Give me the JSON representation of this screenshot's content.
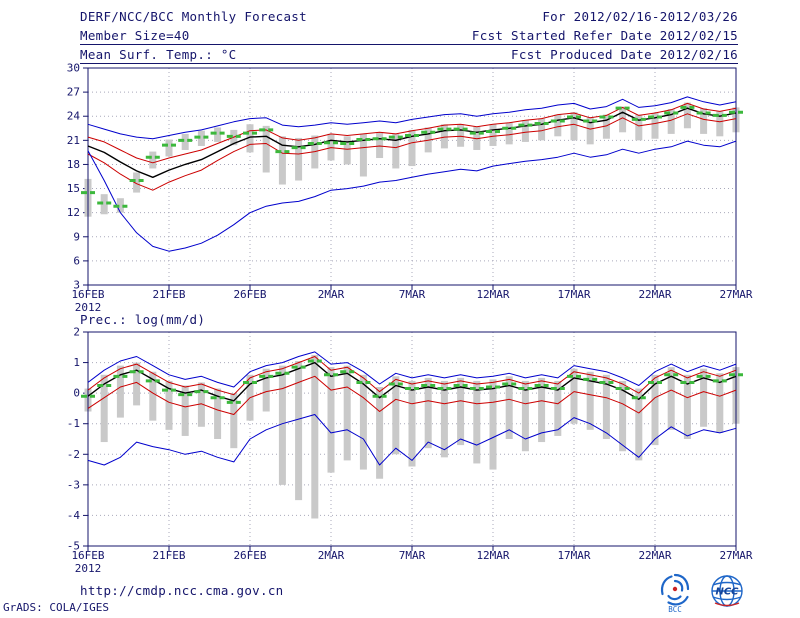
{
  "header": {
    "title": "DERF/NCC/BCC Monthly Forecast",
    "member_size": "Member Size=40",
    "panel1_label": "Mean Surf. Temp.: °C",
    "for_range": "For 2012/02/16-2012/03/26",
    "refer_date": "Fcst Started Refer Date 2012/02/15",
    "produced_date": "Fcst Produced Date 2012/02/16"
  },
  "panel2_label": "Prec.: log(mm/d)",
  "footer": {
    "url": "http://cmdp.ncc.cma.gov.cn",
    "credit": "GrADS: COLA/IGES",
    "logo_left_label": "BCC",
    "logo_right_label": "NCC"
  },
  "colors": {
    "text": "#15156b",
    "frame": "#15156b",
    "grid": "#a9a9bb",
    "bar": "#c9c9c9",
    "minmax": "#0000cc",
    "std": "#cc0000",
    "mean": "#000000",
    "obs": "#3cb83c"
  },
  "chart_data": [
    {
      "type": "line",
      "name": "mean-surface-temperature",
      "title": "Mean Surf. Temp.: °C",
      "ylabel": "°C",
      "ylim": [
        3,
        30
      ],
      "yticks": [
        30,
        27,
        24,
        21,
        18,
        15,
        12,
        9,
        6,
        3
      ],
      "xtick_days": [
        0,
        5,
        10,
        15,
        20,
        25,
        30,
        35,
        40
      ],
      "xtick_labels": [
        "16FEB",
        "21FEB",
        "26FEB",
        "2MAR",
        "7MAR",
        "12MAR",
        "17MAR",
        "22MAR",
        "27MAR"
      ],
      "x_year_label": "2012",
      "grid": "dotted",
      "legend_position": "none",
      "series": [
        {
          "name": "ensemble-max",
          "color": "#0000cc",
          "width": 1,
          "values": [
            23.0,
            22.4,
            21.8,
            21.4,
            21.2,
            21.6,
            22.0,
            22.3,
            22.8,
            23.3,
            23.7,
            23.8,
            22.9,
            22.7,
            22.9,
            23.2,
            23.0,
            23.2,
            23.4,
            23.2,
            23.6,
            23.9,
            24.2,
            24.3,
            24.0,
            24.3,
            24.5,
            24.8,
            25.0,
            25.4,
            25.6,
            24.9,
            25.2,
            26.1,
            25.1,
            25.3,
            25.7,
            26.4,
            25.8,
            25.4,
            25.8
          ]
        },
        {
          "name": "mean-plus-spread",
          "color": "#cc0000",
          "width": 1,
          "values": [
            21.4,
            20.8,
            19.8,
            18.8,
            18.2,
            18.8,
            19.3,
            19.8,
            20.6,
            21.4,
            22.2,
            22.3,
            21.3,
            21.0,
            21.3,
            21.8,
            21.6,
            21.8,
            22.0,
            21.8,
            22.2,
            22.5,
            22.9,
            23.0,
            22.7,
            23.0,
            23.2,
            23.5,
            23.7,
            24.2,
            24.4,
            23.8,
            24.1,
            25.1,
            24.1,
            24.4,
            24.8,
            25.6,
            24.9,
            24.6,
            25.0
          ]
        },
        {
          "name": "ensemble-mean",
          "color": "#000000",
          "width": 1.4,
          "values": [
            20.3,
            19.5,
            18.3,
            17.2,
            16.4,
            17.3,
            18.0,
            18.6,
            19.6,
            20.6,
            21.4,
            21.5,
            20.4,
            20.2,
            20.5,
            21.0,
            20.8,
            21.0,
            21.2,
            21.0,
            21.5,
            21.8,
            22.2,
            22.3,
            22.0,
            22.3,
            22.5,
            22.8,
            23.0,
            23.5,
            23.8,
            23.2,
            23.5,
            24.5,
            23.5,
            23.8,
            24.2,
            25.0,
            24.3,
            24.0,
            24.4
          ]
        },
        {
          "name": "mean-minus-spread",
          "color": "#cc0000",
          "width": 1,
          "values": [
            19.3,
            18.2,
            16.8,
            15.6,
            14.8,
            15.8,
            16.6,
            17.3,
            18.5,
            19.6,
            20.5,
            20.6,
            19.4,
            19.3,
            19.6,
            20.1,
            19.9,
            20.1,
            20.3,
            20.1,
            20.7,
            21.0,
            21.4,
            21.5,
            21.2,
            21.5,
            21.7,
            22.0,
            22.2,
            22.7,
            23.0,
            22.4,
            22.8,
            23.8,
            22.8,
            23.1,
            23.5,
            24.3,
            23.6,
            23.3,
            23.7
          ]
        },
        {
          "name": "ensemble-min",
          "color": "#0000cc",
          "width": 1,
          "values": [
            19.7,
            16.0,
            12.0,
            9.5,
            7.8,
            7.2,
            7.6,
            8.2,
            9.2,
            10.5,
            12.0,
            12.8,
            13.2,
            13.4,
            14.0,
            14.8,
            15.0,
            15.3,
            15.8,
            16.0,
            16.4,
            16.8,
            17.1,
            17.4,
            17.2,
            17.8,
            18.1,
            18.4,
            18.6,
            18.9,
            19.4,
            18.9,
            19.2,
            19.9,
            19.4,
            19.9,
            20.2,
            20.9,
            20.4,
            20.2,
            20.9
          ]
        }
      ],
      "bars": {
        "name": "ensemble-spread-bar",
        "color": "#c9c9c9",
        "ranges": [
          [
            11.5,
            16.2
          ],
          [
            11.8,
            14.3
          ],
          [
            12.0,
            13.8
          ],
          [
            14.5,
            17.0
          ],
          [
            17.5,
            19.6
          ],
          [
            19.0,
            21.1
          ],
          [
            19.8,
            21.8
          ],
          [
            20.3,
            22.2
          ],
          [
            20.8,
            22.6
          ],
          [
            20.4,
            22.3
          ],
          [
            19.5,
            23.0
          ],
          [
            17.0,
            22.8
          ],
          [
            15.5,
            21.5
          ],
          [
            16.0,
            21.3
          ],
          [
            17.5,
            21.6
          ],
          [
            18.5,
            21.8
          ],
          [
            18.0,
            21.5
          ],
          [
            16.5,
            21.8
          ],
          [
            18.8,
            22.0
          ],
          [
            17.5,
            21.8
          ],
          [
            17.8,
            22.3
          ],
          [
            19.5,
            22.6
          ],
          [
            20.0,
            23.0
          ],
          [
            20.2,
            23.0
          ],
          [
            19.8,
            22.7
          ],
          [
            20.3,
            23.0
          ],
          [
            20.5,
            23.2
          ],
          [
            20.8,
            23.5
          ],
          [
            21.0,
            23.7
          ],
          [
            21.5,
            24.2
          ],
          [
            21.0,
            24.5
          ],
          [
            20.5,
            23.9
          ],
          [
            21.2,
            24.2
          ],
          [
            22.0,
            25.2
          ],
          [
            21.0,
            24.2
          ],
          [
            21.2,
            24.4
          ],
          [
            21.8,
            24.9
          ],
          [
            22.5,
            25.7
          ],
          [
            21.8,
            25.0
          ],
          [
            21.5,
            24.6
          ],
          [
            22.0,
            25.1
          ]
        ]
      },
      "markers": {
        "name": "observation-marker",
        "color": "#3cb83c",
        "values": [
          14.5,
          13.2,
          12.8,
          16.0,
          18.9,
          20.4,
          21.0,
          21.4,
          21.9,
          21.5,
          21.9,
          22.3,
          19.6,
          20.1,
          20.6,
          20.7,
          20.6,
          21.1,
          21.2,
          21.4,
          21.6,
          22.0,
          22.4,
          22.4,
          21.9,
          22.1,
          22.5,
          22.9,
          23.1,
          23.4,
          23.9,
          23.4,
          23.9,
          25.0,
          23.6,
          23.9,
          24.4,
          25.1,
          24.4,
          24.1,
          24.5
        ]
      }
    },
    {
      "type": "line",
      "name": "precipitation-log",
      "title": "Prec.: log(mm/d)",
      "ylabel": "log(mm/d)",
      "ylim": [
        -5,
        2
      ],
      "yticks": [
        2,
        1,
        0,
        -1,
        -2,
        -3,
        -4,
        -5
      ],
      "xtick_days": [
        0,
        5,
        10,
        15,
        20,
        25,
        30,
        35,
        40
      ],
      "xtick_labels": [
        "16FEB",
        "21FEB",
        "26FEB",
        "2MAR",
        "7MAR",
        "12MAR",
        "17MAR",
        "22MAR",
        "27MAR"
      ],
      "x_year_label": "2012",
      "grid": "dotted",
      "legend_position": "none",
      "series": [
        {
          "name": "ensemble-max",
          "color": "#0000cc",
          "width": 1,
          "values": [
            0.35,
            0.75,
            1.05,
            1.2,
            0.9,
            0.6,
            0.45,
            0.55,
            0.35,
            0.2,
            0.7,
            0.9,
            1.0,
            1.2,
            1.35,
            0.95,
            1.0,
            0.7,
            0.3,
            0.65,
            0.5,
            0.6,
            0.5,
            0.6,
            0.5,
            0.55,
            0.65,
            0.5,
            0.6,
            0.5,
            0.9,
            0.8,
            0.7,
            0.5,
            0.25,
            0.7,
            0.95,
            0.7,
            0.9,
            0.75,
            0.95
          ]
        },
        {
          "name": "mean-plus-spread",
          "color": "#cc0000",
          "width": 1,
          "values": [
            0.1,
            0.5,
            0.8,
            0.95,
            0.65,
            0.35,
            0.2,
            0.3,
            0.1,
            -0.05,
            0.5,
            0.7,
            0.8,
            1.0,
            1.2,
            0.75,
            0.85,
            0.5,
            0.05,
            0.45,
            0.3,
            0.4,
            0.3,
            0.4,
            0.3,
            0.35,
            0.45,
            0.3,
            0.4,
            0.3,
            0.7,
            0.6,
            0.5,
            0.3,
            0.0,
            0.5,
            0.75,
            0.5,
            0.7,
            0.55,
            0.75
          ]
        },
        {
          "name": "ensemble-mean",
          "color": "#000000",
          "width": 1.4,
          "values": [
            -0.1,
            0.3,
            0.6,
            0.75,
            0.45,
            0.15,
            0.0,
            0.1,
            -0.1,
            -0.25,
            0.3,
            0.5,
            0.6,
            0.8,
            1.0,
            0.55,
            0.65,
            0.3,
            -0.15,
            0.25,
            0.1,
            0.2,
            0.1,
            0.2,
            0.1,
            0.15,
            0.25,
            0.1,
            0.2,
            0.1,
            0.5,
            0.4,
            0.3,
            0.1,
            -0.2,
            0.3,
            0.55,
            0.3,
            0.5,
            0.35,
            0.55
          ]
        },
        {
          "name": "mean-minus-spread",
          "color": "#cc0000",
          "width": 1,
          "values": [
            -0.5,
            -0.15,
            0.2,
            0.35,
            0.0,
            -0.3,
            -0.45,
            -0.35,
            -0.55,
            -0.7,
            -0.15,
            0.05,
            0.15,
            0.35,
            0.55,
            0.1,
            0.2,
            -0.15,
            -0.6,
            -0.2,
            -0.35,
            -0.25,
            -0.35,
            -0.25,
            -0.35,
            -0.3,
            -0.2,
            -0.35,
            -0.25,
            -0.35,
            0.05,
            -0.05,
            -0.15,
            -0.35,
            -0.65,
            -0.15,
            0.1,
            -0.15,
            0.05,
            -0.1,
            0.1
          ]
        },
        {
          "name": "ensemble-min",
          "color": "#0000cc",
          "width": 1,
          "values": [
            -2.2,
            -2.35,
            -2.1,
            -1.6,
            -1.75,
            -1.85,
            -2.0,
            -1.9,
            -2.1,
            -2.25,
            -1.5,
            -1.2,
            -1.0,
            -0.85,
            -0.7,
            -1.3,
            -1.2,
            -1.5,
            -2.35,
            -1.8,
            -2.2,
            -1.6,
            -1.85,
            -1.5,
            -1.7,
            -1.45,
            -1.2,
            -1.5,
            -1.3,
            -1.2,
            -0.8,
            -1.0,
            -1.3,
            -1.7,
            -2.1,
            -1.5,
            -1.1,
            -1.4,
            -1.2,
            -1.3,
            -1.15
          ]
        }
      ],
      "bars": {
        "name": "ensemble-spread-bar",
        "color": "#c9c9c9",
        "ranges": [
          [
            -0.6,
            0.15
          ],
          [
            -1.6,
            0.6
          ],
          [
            -0.8,
            0.9
          ],
          [
            -0.4,
            1.0
          ],
          [
            -0.9,
            0.7
          ],
          [
            -1.2,
            0.4
          ],
          [
            -1.4,
            0.25
          ],
          [
            -1.1,
            0.35
          ],
          [
            -1.5,
            0.15
          ],
          [
            -1.8,
            0.0
          ],
          [
            -0.9,
            0.6
          ],
          [
            -0.6,
            0.8
          ],
          [
            -3.0,
            0.9
          ],
          [
            -3.5,
            1.05
          ],
          [
            -4.1,
            1.25
          ],
          [
            -2.6,
            0.85
          ],
          [
            -2.2,
            0.9
          ],
          [
            -2.5,
            0.6
          ],
          [
            -2.8,
            0.2
          ],
          [
            -2.0,
            0.55
          ],
          [
            -2.4,
            0.4
          ],
          [
            -1.8,
            0.5
          ],
          [
            -2.1,
            0.4
          ],
          [
            -1.7,
            0.5
          ],
          [
            -2.3,
            0.4
          ],
          [
            -2.5,
            0.45
          ],
          [
            -1.5,
            0.55
          ],
          [
            -1.9,
            0.4
          ],
          [
            -1.6,
            0.5
          ],
          [
            -1.4,
            0.4
          ],
          [
            -1.0,
            0.8
          ],
          [
            -1.2,
            0.7
          ],
          [
            -1.5,
            0.6
          ],
          [
            -1.9,
            0.4
          ],
          [
            -2.2,
            0.15
          ],
          [
            -1.7,
            0.6
          ],
          [
            -1.2,
            0.85
          ],
          [
            -1.5,
            0.6
          ],
          [
            -1.1,
            0.8
          ],
          [
            -1.3,
            0.65
          ],
          [
            -1.0,
            0.85
          ]
        ]
      },
      "markers": {
        "name": "observation-marker",
        "color": "#3cb83c",
        "values": [
          -0.1,
          0.25,
          0.55,
          0.7,
          0.4,
          0.1,
          -0.05,
          0.05,
          -0.15,
          -0.3,
          0.35,
          0.55,
          0.65,
          0.85,
          1.05,
          0.6,
          0.7,
          0.35,
          -0.1,
          0.3,
          0.15,
          0.25,
          0.15,
          0.25,
          0.15,
          0.2,
          0.3,
          0.15,
          0.25,
          0.15,
          0.55,
          0.45,
          0.35,
          0.15,
          -0.15,
          0.35,
          0.6,
          0.35,
          0.55,
          0.4,
          0.6
        ]
      }
    }
  ]
}
